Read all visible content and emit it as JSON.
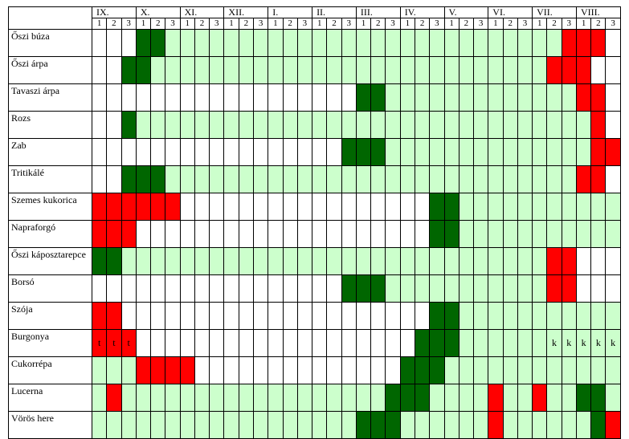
{
  "header": {
    "months": [
      "IX.",
      "X.",
      "XI.",
      "XII.",
      "I.",
      "II.",
      "III.",
      "IV.",
      "V.",
      "VI.",
      "VII.",
      "VIII."
    ],
    "decades": [
      "1",
      "2",
      "3"
    ]
  },
  "colors": {
    "w": "#ffffff",
    "l": "#ccffcc",
    "g": "#006600",
    "r": "#ff0000"
  },
  "crops": [
    {
      "name": "Őszi búza",
      "pattern": "wwwgglllllllllllllllllllllllllllrrrwwwwww",
      "marks": {}
    },
    {
      "name": "Őszi árpa",
      "pattern": "wwgglllllllllllllllllllllllllllrrrwwwwwww",
      "marks": {}
    },
    {
      "name": "Tavaszi árpa",
      "pattern": "wwwwwwwwwwwwwwwwwwgglllllllllllllrrwwwwww",
      "marks": {}
    },
    {
      "name": "Rozs",
      "pattern": "wwglllllllllllllllllllllllllllllllrwwwwww",
      "marks": {}
    },
    {
      "name": "Zab",
      "pattern": "wwwwwwwwwwwwwwwwwgggllllllllllllllrrwwwww",
      "marks": {}
    },
    {
      "name": "Tritikálé",
      "pattern": "wwgggllllllllllllllllllllllllllllrrwwwwww",
      "marks": {}
    },
    {
      "name": "Szemes kukorica",
      "pattern": "rrrrrrwwwwwwwwwwwwwwwwwggllllllllllllllllr",
      "marks": {}
    },
    {
      "name": "Napraforgó",
      "pattern": "rrrwwwwwwwwwwwwwwwwwwwwggllllllllllllllll",
      "marks": {}
    },
    {
      "name": "Őszi káposztarepce",
      "pattern": "gglllllllllllllllllllllllllllllrrwwwwwwww",
      "marks": {}
    },
    {
      "name": "Borsó",
      "pattern": "wwwwwwwwwwwwwwwwwggglllllllllllrrwwwwwwww",
      "marks": {}
    },
    {
      "name": "Szója",
      "pattern": "rrwwwwwwwwwwwwwwwwwwwwwggllllllllllllrrrrr",
      "marks": {}
    },
    {
      "name": "Burgonya",
      "pattern": "rrrwwwwwwwwwwwwwwwwwwwgggllllllllllllrrrrr",
      "marks": {
        "0": "t",
        "1": "t",
        "2": "t",
        "31": "k",
        "32": "k",
        "33": "k",
        "34": "k",
        "35": "k"
      }
    },
    {
      "name": "Cukorrépa",
      "pattern": "lllrrrrwwwwwwwwwwwwwwgggllllllllllllllllll",
      "marks": {}
    },
    {
      "name": "Lucerna",
      "pattern": "lrllllllllllllllllllgggllllrllrllgglllrll",
      "marks": {}
    },
    {
      "name": "Vörös here",
      "pattern": "llllllllllllllllllgggllllllrllllllgrlllll",
      "marks": {}
    }
  ]
}
